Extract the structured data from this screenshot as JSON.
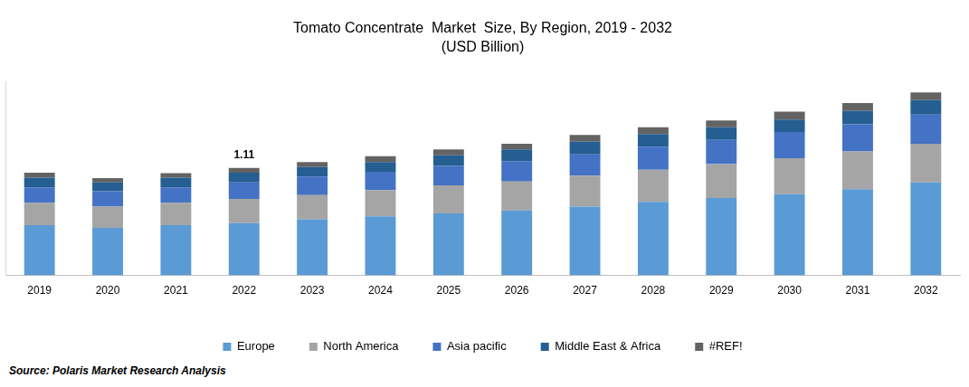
{
  "chart_data": {
    "type": "bar",
    "stacked": true,
    "title": "Tomato Concentrate  Market  Size, By Region, 2019 - 2032",
    "subtitle": "(USD Billion)",
    "source": "Source: Polaris  Market Research Analysis",
    "categories": [
      "2019",
      "2020",
      "2021",
      "2022",
      "2023",
      "2024",
      "2025",
      "2026",
      "2027",
      "2028",
      "2029",
      "2030",
      "2031",
      "2032"
    ],
    "series": [
      {
        "name": "Europe",
        "color": "#5b9bd5",
        "values": [
          0.52,
          0.49,
          0.52,
          0.54,
          0.58,
          0.61,
          0.64,
          0.67,
          0.71,
          0.76,
          0.8,
          0.84,
          0.89,
          0.96
        ]
      },
      {
        "name": "North America",
        "color": "#a5a5a5",
        "values": [
          0.23,
          0.22,
          0.23,
          0.25,
          0.25,
          0.27,
          0.29,
          0.3,
          0.32,
          0.33,
          0.35,
          0.37,
          0.39,
          0.4
        ]
      },
      {
        "name": "Asia pacific",
        "color": "#4472c4",
        "values": [
          0.16,
          0.16,
          0.16,
          0.17,
          0.19,
          0.19,
          0.2,
          0.21,
          0.22,
          0.24,
          0.25,
          0.27,
          0.28,
          0.3
        ]
      },
      {
        "name": "Middle East & Africa",
        "color": "#255e91",
        "values": [
          0.1,
          0.09,
          0.1,
          0.1,
          0.1,
          0.1,
          0.11,
          0.12,
          0.13,
          0.13,
          0.13,
          0.13,
          0.14,
          0.15
        ]
      },
      {
        "name": "#REF!",
        "color": "#636363",
        "values": [
          0.05,
          0.045,
          0.045,
          0.05,
          0.05,
          0.06,
          0.06,
          0.06,
          0.07,
          0.07,
          0.07,
          0.08,
          0.08,
          0.08
        ]
      }
    ],
    "annotations": [
      {
        "text": "1.11",
        "category": "2022"
      }
    ],
    "ylim": [
      0,
      2
    ],
    "grid": false,
    "legend": "bottom",
    "tick_labels": "x"
  }
}
